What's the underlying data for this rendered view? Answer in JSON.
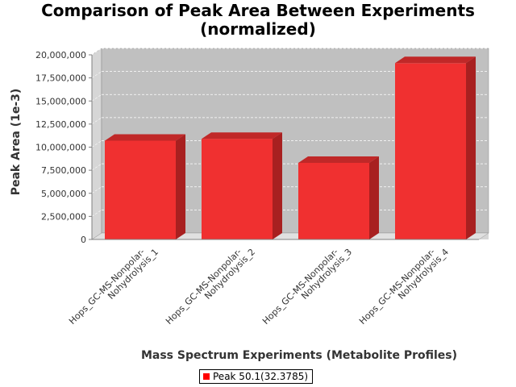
{
  "chart_data": {
    "type": "bar",
    "title_line1": "Comparison of Peak Area Between Experiments",
    "title_line2": "(normalized)",
    "xlabel": "Mass Spectrum Experiments (Metabolite Profiles)",
    "ylabel": "Peak Area (1e-3)",
    "categories": [
      [
        "Hops_GC-MS-Nonpolar-",
        "Nohydrolysis_1"
      ],
      [
        "Hops_GC-MS-Nonpolar-",
        "Nohydrolysis_2"
      ],
      [
        "Hops_GC-MS-Nonpolar-",
        "Nohydrolysis_3"
      ],
      [
        "Hops_GC-MS-Nonpolar-",
        "Nohydrolysis_4"
      ]
    ],
    "series": [
      {
        "name": "Peak 50.1(32.3785)",
        "color": "#ff0000",
        "values": [
          10700000,
          10900000,
          8300000,
          19100000
        ]
      }
    ],
    "ylim": [
      0,
      20000000
    ],
    "yticks": [
      "0",
      "2,500,000",
      "5,000,000",
      "7,500,000",
      "10,000,000",
      "12,500,000",
      "15,000,000",
      "17,500,000",
      "20,000,000"
    ],
    "ytick_values": [
      0,
      2500000,
      5000000,
      7500000,
      10000000,
      12500000,
      15000000,
      17500000,
      20000000
    ],
    "grid": true,
    "legend_position": "bottom-center",
    "plot_background": "#c0c0c0"
  }
}
